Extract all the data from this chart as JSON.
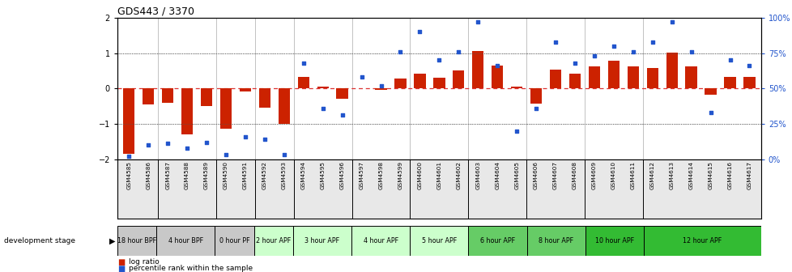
{
  "title": "GDS443 / 3370",
  "samples": [
    "GSM4585",
    "GSM4586",
    "GSM4587",
    "GSM4588",
    "GSM4589",
    "GSM4590",
    "GSM4591",
    "GSM4592",
    "GSM4593",
    "GSM4594",
    "GSM4595",
    "GSM4596",
    "GSM4597",
    "GSM4598",
    "GSM4599",
    "GSM4600",
    "GSM4601",
    "GSM4602",
    "GSM4603",
    "GSM4604",
    "GSM4605",
    "GSM4606",
    "GSM4607",
    "GSM4608",
    "GSM4609",
    "GSM4610",
    "GSM4611",
    "GSM4612",
    "GSM4613",
    "GSM4614",
    "GSM4615",
    "GSM4616",
    "GSM4617"
  ],
  "log_ratio": [
    -1.85,
    -0.45,
    -0.4,
    -1.3,
    -0.5,
    -1.15,
    -0.08,
    -0.55,
    -1.0,
    0.32,
    0.04,
    -0.3,
    0.01,
    -0.04,
    0.28,
    0.42,
    0.3,
    0.5,
    1.05,
    0.65,
    0.04,
    -0.42,
    0.52,
    0.42,
    0.62,
    0.78,
    0.62,
    0.58,
    1.02,
    0.62,
    -0.18,
    0.32,
    0.32
  ],
  "percentile": [
    2,
    10,
    11,
    8,
    12,
    3,
    16,
    14,
    3,
    68,
    36,
    31,
    58,
    52,
    76,
    90,
    70,
    76,
    97,
    66,
    20,
    36,
    83,
    68,
    73,
    80,
    76,
    83,
    97,
    76,
    33,
    70,
    66
  ],
  "stage_groups": [
    {
      "label": "18 hour BPF",
      "start": 0,
      "end": 2,
      "color": "#c8c8c8"
    },
    {
      "label": "4 hour BPF",
      "start": 2,
      "end": 5,
      "color": "#c8c8c8"
    },
    {
      "label": "0 hour PF",
      "start": 5,
      "end": 7,
      "color": "#c8c8c8"
    },
    {
      "label": "2 hour APF",
      "start": 7,
      "end": 9,
      "color": "#ccffcc"
    },
    {
      "label": "3 hour APF",
      "start": 9,
      "end": 12,
      "color": "#ccffcc"
    },
    {
      "label": "4 hour APF",
      "start": 12,
      "end": 15,
      "color": "#ccffcc"
    },
    {
      "label": "5 hour APF",
      "start": 15,
      "end": 18,
      "color": "#ccffcc"
    },
    {
      "label": "6 hour APF",
      "start": 18,
      "end": 21,
      "color": "#66cc66"
    },
    {
      "label": "8 hour APF",
      "start": 21,
      "end": 24,
      "color": "#66cc66"
    },
    {
      "label": "10 hour APF",
      "start": 24,
      "end": 27,
      "color": "#33bb33"
    },
    {
      "label": "12 hour APF",
      "start": 27,
      "end": 33,
      "color": "#33bb33"
    }
  ],
  "ylim": [
    -2,
    2
  ],
  "bar_color": "#cc2200",
  "dot_color": "#2255cc",
  "hline0_color": "#dd3333",
  "hline_color": "#555555",
  "yticks_left": [
    -2,
    -1,
    0,
    1,
    2
  ],
  "yticks_right": [
    0,
    25,
    50,
    75,
    100
  ],
  "ytick_right_labels": [
    "0%",
    "25%",
    "50%",
    "75%",
    "100%"
  ]
}
